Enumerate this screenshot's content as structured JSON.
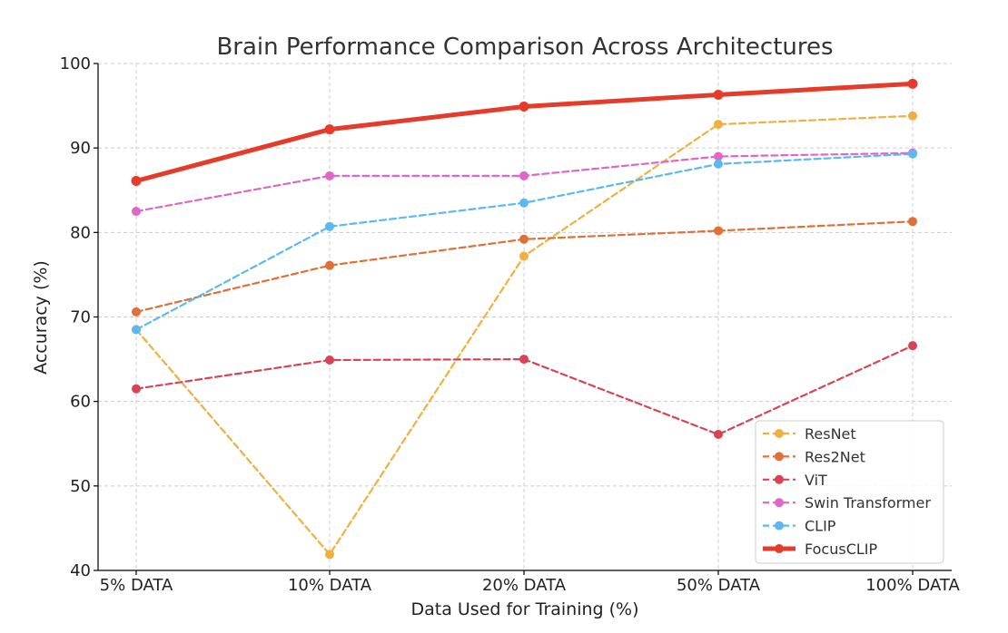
{
  "chart_data": {
    "type": "line",
    "title": "Brain Performance Comparison Across Architectures",
    "xlabel": "Data Used for Training (%)",
    "ylabel": "Accuracy (%)",
    "categories": [
      "5% DATA",
      "10% DATA",
      "20% DATA",
      "50% DATA",
      "100% DATA"
    ],
    "ylim": [
      40,
      100
    ],
    "yticks": [
      "40",
      "50",
      "60",
      "70",
      "80",
      "90",
      "100"
    ],
    "grid": true,
    "legend_position": "bottom-right",
    "series": [
      {
        "name": "ResNet",
        "color": "#f0b040",
        "style": "dashed",
        "values": [
          68.5,
          41.9,
          77.2,
          92.8,
          93.8
        ]
      },
      {
        "name": "Res2Net",
        "color": "#e07038",
        "style": "dashed",
        "values": [
          70.6,
          76.1,
          79.2,
          80.2,
          81.3
        ]
      },
      {
        "name": "ViT",
        "color": "#d94455",
        "style": "dashed",
        "values": [
          61.5,
          64.9,
          65.0,
          56.1,
          66.6
        ]
      },
      {
        "name": "Swin Transformer",
        "color": "#e066c8",
        "style": "dashed",
        "values": [
          82.5,
          86.7,
          86.7,
          89.0,
          89.4
        ]
      },
      {
        "name": "CLIP",
        "color": "#5cb8f0",
        "style": "dashed",
        "values": [
          68.5,
          80.7,
          83.5,
          88.1,
          89.3
        ]
      },
      {
        "name": "FocusCLIP",
        "color": "#e63a2a",
        "style": "solid",
        "values": [
          86.1,
          92.2,
          94.9,
          96.3,
          97.6
        ]
      }
    ]
  }
}
